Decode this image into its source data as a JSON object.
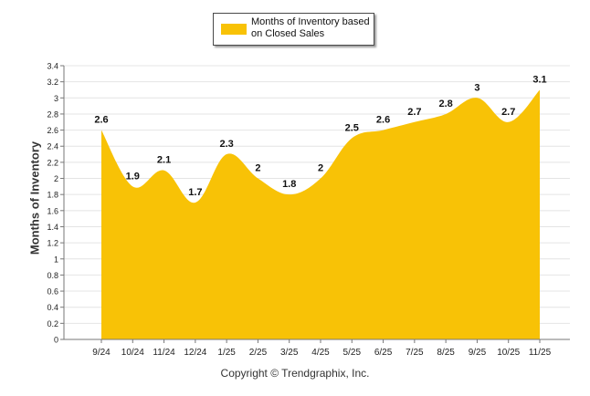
{
  "chart_data": {
    "type": "area",
    "title": "",
    "categories": [
      "9/24",
      "10/24",
      "11/24",
      "12/24",
      "1/25",
      "2/25",
      "3/25",
      "4/25",
      "5/25",
      "6/25",
      "7/25",
      "8/25",
      "9/25",
      "10/25",
      "11/25"
    ],
    "series": [
      {
        "name": "Months of Inventory based on Closed Sales",
        "values": [
          2.6,
          1.9,
          2.1,
          1.7,
          2.3,
          2,
          1.8,
          2,
          2.5,
          2.6,
          2.7,
          2.8,
          3,
          2.7,
          3.1
        ]
      }
    ],
    "data_labels": [
      "2.6",
      "1.9",
      "2.1",
      "1.7",
      "2.3",
      "2",
      "1.8",
      "2",
      "2.5",
      "2.6",
      "2.7",
      "2.8",
      "3",
      "2.7",
      "3.1"
    ],
    "ylabel": "Months of Inventory",
    "xlabel": "",
    "ylim": [
      0,
      3.4
    ],
    "yticks": [
      "0",
      "0.2",
      "0.4",
      "0.6",
      "0.8",
      "1",
      "1.2",
      "1.4",
      "1.6",
      "1.8",
      "2",
      "2.2",
      "2.4",
      "2.6",
      "2.8",
      "3",
      "3.2",
      "3.4"
    ],
    "grid": true,
    "legend_position": "top-center"
  },
  "colors": {
    "area": "#F8C206",
    "grid": "#e4e4e4",
    "axis": "#777777"
  },
  "legend": {
    "label": "Months of Inventory based on Closed Sales"
  },
  "footer": {
    "copyright": "Copyright © Trendgraphix, Inc."
  }
}
